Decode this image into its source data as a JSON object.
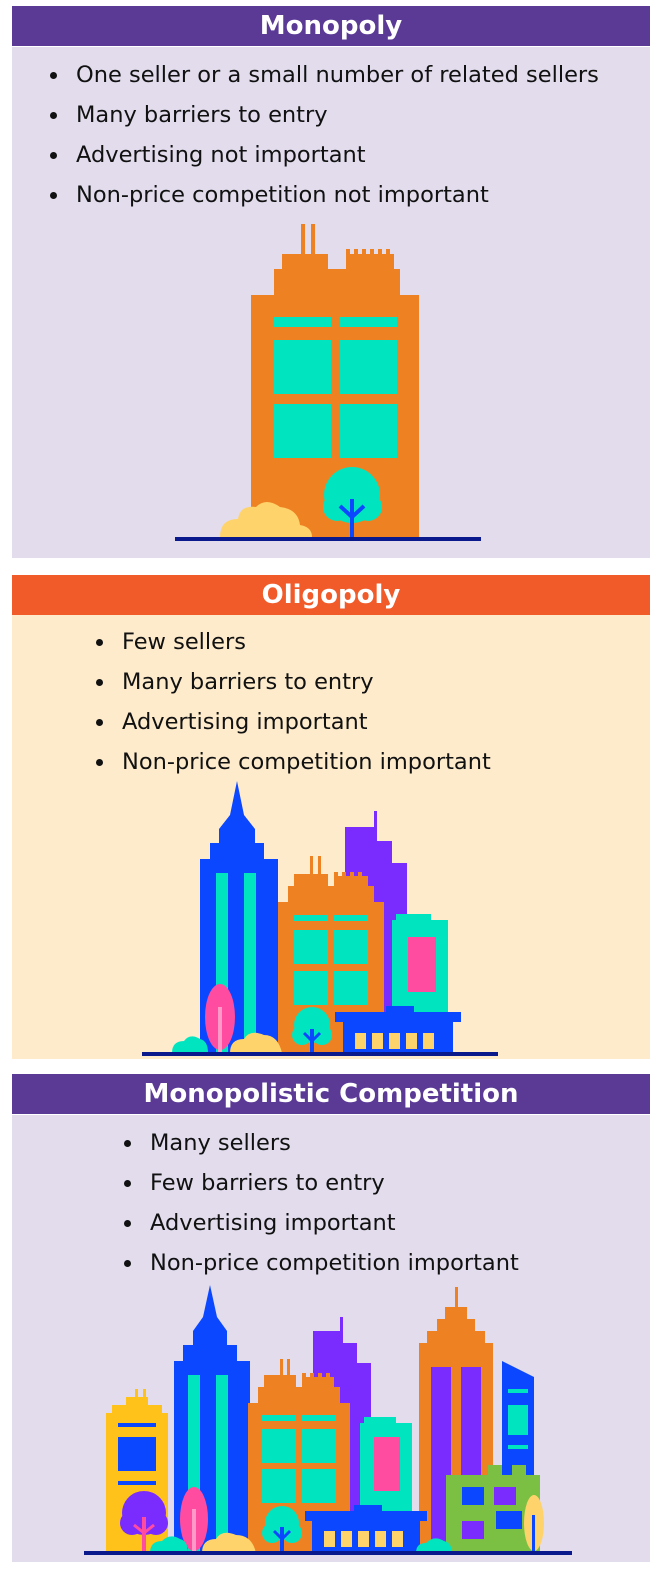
{
  "colors": {
    "purple_header": "#5b3a96",
    "orange_header": "#f15a29",
    "lavender_bg": "#e2dced",
    "cream_bg": "#fdebcc"
  },
  "panels": [
    {
      "title": "Monopoly",
      "bullets": [
        "One seller or a small number of related sellers",
        "Many barriers to entry",
        "Advertising not important",
        "Non-price competition not important"
      ]
    },
    {
      "title": "Oligopoly",
      "bullets": [
        "Few sellers",
        "Many barriers to entry",
        "Advertising important",
        "Non-price competition important"
      ]
    },
    {
      "title": "Monopolistic Competition",
      "bullets": [
        "Many sellers",
        "Few barriers to entry",
        "Advertising important",
        "Non-price competition important"
      ]
    }
  ]
}
